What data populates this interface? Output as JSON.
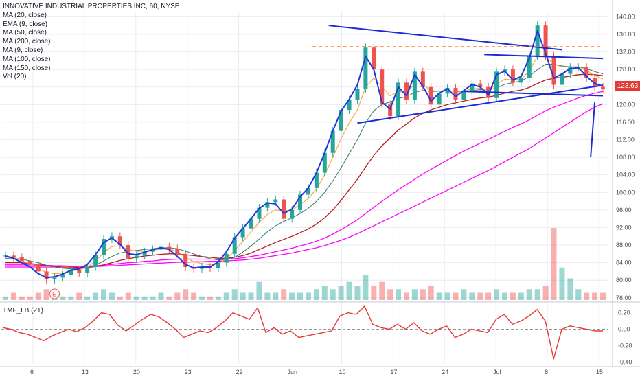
{
  "chart_data": [
    {
      "type": "line",
      "title": "INNOVATIVE INDUSTRIAL PROPERTIES INC, 60, NYSE",
      "indicators": [
        "MA (20, close)",
        "EMA (9, close)",
        "MA (50, close)",
        "MA (200, close)",
        "MA (9, close)",
        "MA (100, close)",
        "MA (150, close)",
        "Vol (20)"
      ],
      "x_tick_labels": [
        "6",
        "13",
        "20",
        "23",
        "29",
        "Jun",
        "10",
        "17",
        "24",
        "Jul",
        "8",
        "15"
      ],
      "y_tick_labels": [
        "140.00",
        "136.00",
        "132.00",
        "128.00",
        "124.00",
        "120.00",
        "116.00",
        "112.00",
        "108.00",
        "104.00",
        "100.00",
        "96.00",
        "92.00",
        "88.00",
        "84.00",
        "80.00",
        "76.00"
      ],
      "ylim": [
        75.5,
        141
      ],
      "last_price": "123.63",
      "event_marker": "E",
      "price_close_approx": [
        85.6,
        85.2,
        84.4,
        83.8,
        82.0,
        80.2,
        80.6,
        81.2,
        82.4,
        81.6,
        83.0,
        85.8,
        89.4,
        90.0,
        88.0,
        85.0,
        85.6,
        86.5,
        87.0,
        87.6,
        87.2,
        86.0,
        83.0,
        82.6,
        83.0,
        82.8,
        84.0,
        86.0,
        89.8,
        91.8,
        94.0,
        96.5,
        97.8,
        98.4,
        94.0,
        96.0,
        99.5,
        101.0,
        104.5,
        109.0,
        114.0,
        118.8,
        121.0,
        123.5,
        133.0,
        128.0,
        120.0,
        117.4,
        125.0,
        121.0,
        127.5,
        124.0,
        120.0,
        122.5,
        123.8,
        121.0,
        123.0,
        124.8,
        124.0,
        121.5,
        127.5,
        128.0,
        125.0,
        126.0,
        131.0,
        138.0,
        131.0,
        124.5,
        127.0,
        128.5,
        128.5,
        126.0,
        124.0,
        123.6
      ],
      "ma_fast_approx": [
        85.5,
        85.0,
        84.0,
        83.0,
        81.5,
        80.6,
        80.8,
        81.4,
        82.3,
        82.6,
        83.6,
        85.8,
        88.6,
        89.6,
        88.2,
        86.0,
        85.8,
        86.4,
        87.0,
        87.4,
        87.0,
        85.4,
        83.6,
        82.8,
        83.0,
        83.0,
        84.2,
        86.5,
        89.6,
        91.8,
        94.0,
        96.4,
        97.6,
        97.4,
        95.2,
        96.2,
        99.0,
        101.0,
        104.5,
        109.0,
        114.0,
        118.5,
        121.2,
        124.5,
        131.0,
        128.0,
        120.5,
        119.0,
        124.0,
        122.0,
        126.8,
        124.2,
        120.8,
        122.6,
        123.6,
        121.8,
        123.2,
        124.6,
        124.0,
        122.2,
        126.8,
        127.6,
        125.6,
        126.4,
        130.6,
        136.8,
        131.6,
        126.0,
        127.0,
        128.2,
        128.4,
        126.4,
        124.8,
        124.2
      ],
      "ema_approx": [
        85.5,
        85.2,
        84.5,
        83.7,
        82.6,
        81.8,
        81.5,
        81.6,
        82.1,
        82.4,
        83.0,
        84.3,
        86.3,
        87.7,
        87.8,
        87.0,
        86.6,
        86.6,
        86.8,
        87.1,
        87.1,
        86.5,
        85.2,
        84.2,
        83.8,
        83.5,
        83.8,
        84.8,
        86.8,
        88.8,
        91.0,
        93.2,
        95.0,
        96.0,
        95.8,
        96.0,
        97.2,
        98.6,
        100.8,
        104.0,
        108.0,
        112.2,
        115.8,
        118.8,
        124.0,
        126.0,
        124.0,
        122.0,
        123.0,
        122.6,
        124.8,
        124.6,
        123.2,
        123.0,
        123.4,
        122.8,
        123.0,
        123.6,
        123.7,
        123.2,
        124.6,
        125.8,
        125.6,
        125.8,
        127.6,
        131.0,
        131.0,
        129.2,
        128.6,
        128.6,
        128.6,
        127.8,
        126.6,
        125.8
      ],
      "ma_mid_approx": [
        85.0,
        85.0,
        84.8,
        84.4,
        84.0,
        83.4,
        83.0,
        82.7,
        82.6,
        82.6,
        82.8,
        83.4,
        84.4,
        85.4,
        86.2,
        86.6,
        86.8,
        87.0,
        87.2,
        87.4,
        87.4,
        87.2,
        86.6,
        86.0,
        85.4,
        84.9,
        84.6,
        84.6,
        85.2,
        86.4,
        87.8,
        89.4,
        91.0,
        92.4,
        93.4,
        94.2,
        95.2,
        96.4,
        98.0,
        100.0,
        102.6,
        105.6,
        108.8,
        112.0,
        115.8,
        118.6,
        120.0,
        120.6,
        121.4,
        121.8,
        122.8,
        123.2,
        123.0,
        123.0,
        123.2,
        123.0,
        123.0,
        123.2,
        123.4,
        123.3,
        123.8,
        124.6,
        125.0,
        125.4,
        126.4,
        128.0,
        129.2,
        129.2,
        128.8,
        128.6,
        128.6,
        128.2,
        127.5,
        127.0
      ],
      "ma_slow1_approx": [
        84.0,
        84.0,
        84.0,
        83.8,
        83.6,
        83.4,
        83.2,
        83.0,
        83.0,
        82.9,
        82.9,
        83.1,
        83.5,
        84.0,
        84.5,
        84.9,
        85.2,
        85.5,
        85.7,
        85.9,
        86.0,
        86.0,
        85.8,
        85.6,
        85.4,
        85.2,
        85.0,
        85.0,
        85.2,
        85.6,
        86.2,
        87.0,
        87.8,
        88.6,
        89.3,
        90.0,
        90.8,
        91.7,
        92.8,
        94.2,
        96.0,
        98.2,
        100.6,
        103.0,
        105.8,
        108.4,
        110.6,
        112.4,
        114.2,
        115.6,
        117.0,
        118.0,
        118.8,
        119.4,
        120.0,
        120.4,
        120.8,
        121.2,
        121.5,
        121.7,
        122.1,
        122.6,
        123.0,
        123.3,
        123.9,
        124.8,
        125.6,
        126.0,
        126.2,
        126.5,
        126.8,
        126.9,
        126.8,
        126.6
      ],
      "ma_slow2_approx": [
        83.5,
        83.5,
        83.5,
        83.5,
        83.4,
        83.4,
        83.3,
        83.3,
        83.2,
        83.2,
        83.2,
        83.3,
        83.4,
        83.6,
        83.8,
        84.0,
        84.1,
        84.3,
        84.4,
        84.6,
        84.7,
        84.8,
        84.8,
        84.8,
        84.8,
        84.8,
        84.8,
        84.8,
        84.9,
        85.1,
        85.4,
        85.7,
        86.1,
        86.5,
        86.9,
        87.3,
        87.8,
        88.3,
        88.9,
        89.6,
        90.5,
        91.5,
        92.6,
        93.8,
        95.2,
        96.6,
        98.0,
        99.3,
        100.6,
        101.8,
        103.0,
        104.2,
        105.3,
        106.3,
        107.4,
        108.4,
        109.4,
        110.3,
        111.2,
        112.1,
        113.0,
        113.9,
        114.8,
        115.6,
        116.5,
        117.6,
        118.6,
        119.4,
        120.1,
        120.8,
        121.5,
        122.1,
        122.6,
        123.0
      ],
      "ma_slowest_approx": [
        83.0,
        83.0,
        83.0,
        83.0,
        83.0,
        83.0,
        83.0,
        83.0,
        83.0,
        83.0,
        83.0,
        83.1,
        83.2,
        83.3,
        83.4,
        83.5,
        83.6,
        83.7,
        83.8,
        83.9,
        84.0,
        84.1,
        84.1,
        84.2,
        84.2,
        84.3,
        84.3,
        84.4,
        84.5,
        84.6,
        84.8,
        85.0,
        85.3,
        85.6,
        85.9,
        86.2,
        86.6,
        87.0,
        87.4,
        87.9,
        88.5,
        89.1,
        89.8,
        90.6,
        91.5,
        92.4,
        93.3,
        94.2,
        95.1,
        96.0,
        96.9,
        97.8,
        98.7,
        99.6,
        100.5,
        101.4,
        102.3,
        103.2,
        104.1,
        105.0,
        106.0,
        107.0,
        108.0,
        109.0,
        110.0,
        111.2,
        112.4,
        113.6,
        114.8,
        116.0,
        117.2,
        118.4,
        119.4,
        120.2
      ],
      "volume_approx": [
        1,
        2,
        1,
        1,
        2,
        3,
        2,
        1,
        1,
        2,
        1,
        2,
        3,
        2,
        1,
        2,
        1,
        1,
        1,
        2,
        1,
        2,
        3,
        2,
        1,
        1,
        1,
        2,
        3,
        2,
        2,
        5,
        2,
        2,
        3,
        2,
        2,
        2,
        3,
        4,
        3,
        4,
        5,
        4,
        7,
        4,
        5,
        3,
        3,
        2,
        3,
        3,
        4,
        2,
        2,
        2,
        3,
        2,
        2,
        2,
        3,
        2,
        2,
        2,
        3,
        3,
        4,
        20,
        9,
        6,
        3,
        2,
        2,
        2
      ]
    },
    {
      "type": "line",
      "title": "TMF_LB (21)",
      "y_tick_labels": [
        "0.20",
        "0.00",
        "-0.20",
        "-0.40"
      ],
      "ylim": [
        -0.42,
        0.28
      ],
      "baseline": 0.0,
      "values_approx": [
        0.02,
        0.0,
        -0.04,
        -0.06,
        -0.1,
        -0.14,
        -0.08,
        -0.04,
        0.0,
        -0.03,
        0.02,
        0.1,
        0.2,
        0.18,
        0.05,
        -0.02,
        0.05,
        0.12,
        0.18,
        0.15,
        0.08,
        0.0,
        -0.1,
        -0.06,
        -0.02,
        -0.04,
        0.02,
        0.1,
        0.2,
        0.16,
        0.12,
        0.26,
        -0.04,
        0.02,
        -0.06,
        -0.02,
        -0.1,
        -0.08,
        -0.06,
        -0.04,
        -0.02,
        0.16,
        0.2,
        0.18,
        0.28,
        0.06,
        0.02,
        0.0,
        0.06,
        0.0,
        0.08,
        -0.02,
        -0.06,
        0.0,
        0.04,
        -0.1,
        -0.06,
        0.0,
        -0.02,
        -0.04,
        0.12,
        0.18,
        0.06,
        0.1,
        0.16,
        0.24,
        0.1,
        -0.36,
        0.0,
        0.04,
        0.02,
        0.0,
        -0.02,
        -0.02
      ]
    }
  ],
  "colors": {
    "up": "#26a69a",
    "down": "#ef5350",
    "ma_fast": "#1e3ad9",
    "ema": "#f7a94a",
    "ma_mid": "#2f7a6e",
    "ma_slow1": "#b71c1c",
    "ma_slow2": "#ff00ff",
    "ma_slowest": "#ff00ff",
    "pattern_lines": "#1a2bd6",
    "resistance": "#ff7f2a",
    "tmf_line": "#e53935",
    "price_tag_bg": "#e53935",
    "grid": "#e9ecf1"
  }
}
